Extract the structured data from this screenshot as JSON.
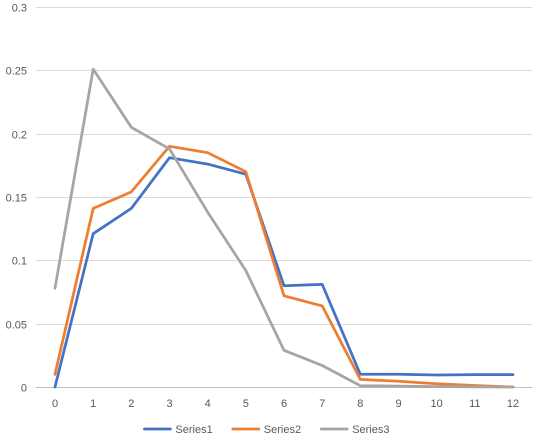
{
  "chart_data": {
    "type": "line",
    "title": "",
    "xlabel": "",
    "ylabel": "",
    "x": [
      0,
      1,
      2,
      3,
      4,
      5,
      6,
      7,
      8,
      9,
      10,
      11,
      12
    ],
    "x_ticks": [
      "0",
      "1",
      "2",
      "3",
      "4",
      "5",
      "6",
      "7",
      "8",
      "9",
      "10",
      "11",
      "12"
    ],
    "ylim": [
      0,
      0.3
    ],
    "y_ticks": [
      0,
      0.05,
      0.1,
      0.15,
      0.2,
      0.25,
      0.3
    ],
    "y_tick_labels": [
      "0",
      "0.05",
      "0.1",
      "0.15",
      "0.2",
      "0.25",
      "0.3"
    ],
    "grid": "horizontal",
    "legend": "bottom",
    "series": [
      {
        "name": "Series1",
        "color": "#4472C4",
        "values": [
          0.0,
          0.121,
          0.141,
          0.181,
          0.176,
          0.168,
          0.08,
          0.081,
          0.01,
          0.01,
          0.0095,
          0.0098,
          0.0098
        ]
      },
      {
        "name": "Series2",
        "color": "#ED7D31",
        "values": [
          0.01,
          0.141,
          0.154,
          0.19,
          0.185,
          0.17,
          0.072,
          0.064,
          0.006,
          0.0045,
          0.0025,
          0.0012,
          0.0
        ]
      },
      {
        "name": "Series3",
        "color": "#A5A5A5",
        "values": [
          0.078,
          0.251,
          0.205,
          0.188,
          0.138,
          0.092,
          0.029,
          0.017,
          0.001,
          0.0007,
          0.0003,
          0.0001,
          0.0
        ]
      }
    ]
  }
}
